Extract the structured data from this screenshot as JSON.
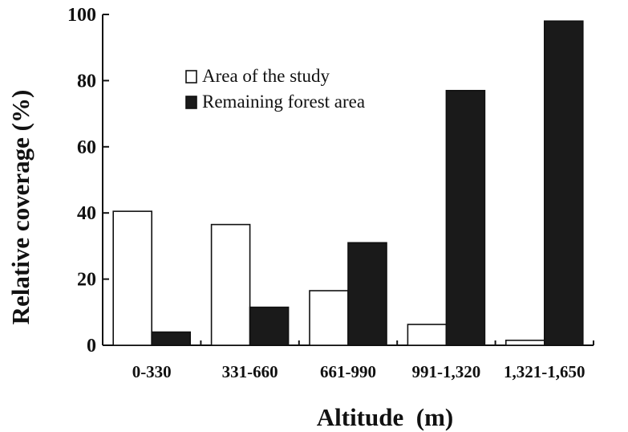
{
  "chart_data": {
    "type": "bar",
    "categories": [
      "0-330",
      "331-660",
      "661-990",
      "991-1,320",
      "1,321-1,650"
    ],
    "series": [
      {
        "name": "Area of the study",
        "values": [
          40.5,
          36.5,
          16.5,
          6.3,
          1.5
        ],
        "color": "#ffffff"
      },
      {
        "name": "Remaining forest area",
        "values": [
          4,
          11.5,
          31,
          77,
          98
        ],
        "color": "#1a1a1a"
      }
    ],
    "title": "",
    "xlabel": "Altitude  (m)",
    "ylabel": "Relative coverage (%)",
    "ylim": [
      0,
      100
    ],
    "yticks": [
      "0",
      "20",
      "40",
      "60",
      "80",
      "100"
    ],
    "grid": false,
    "legend_position": "top-center"
  }
}
